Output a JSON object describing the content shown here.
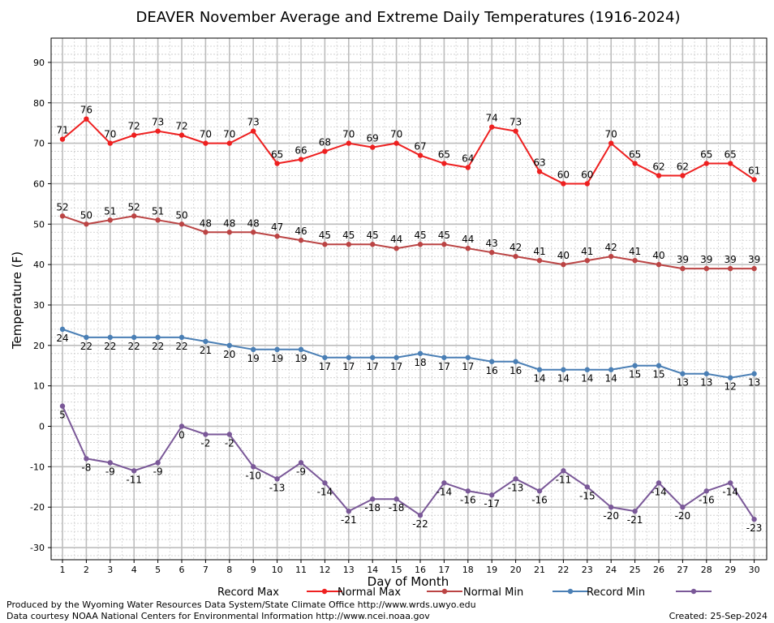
{
  "chart_data": {
    "type": "line",
    "title": "DEAVER November Average and Extreme Daily Temperatures (1916-2024)",
    "xlabel": "Day of Month",
    "ylabel": "Temperature (F)",
    "xlim": [
      1,
      30
    ],
    "ylim": [
      -33,
      96
    ],
    "yticks": [
      "-30",
      "-20",
      "-10",
      "0",
      "10",
      "20",
      "30",
      "40",
      "50",
      "60",
      "70",
      "80",
      "90"
    ],
    "x": [
      1,
      2,
      3,
      4,
      5,
      6,
      7,
      8,
      9,
      10,
      11,
      12,
      13,
      14,
      15,
      16,
      17,
      18,
      19,
      20,
      21,
      22,
      23,
      24,
      25,
      26,
      27,
      28,
      29,
      30
    ],
    "grid": true,
    "legend_position": "bottom",
    "series": [
      {
        "name": "Record Max",
        "color": "#ee2020",
        "label_pos": "above",
        "values": [
          71,
          76,
          70,
          72,
          73,
          72,
          70,
          70,
          73,
          65,
          66,
          68,
          70,
          69,
          70,
          67,
          65,
          64,
          74,
          73,
          63,
          60,
          60,
          70,
          65,
          62,
          62,
          65,
          65,
          61
        ]
      },
      {
        "name": "Normal Max",
        "color": "#bb4444",
        "label_pos": "above",
        "values": [
          52,
          50,
          51,
          52,
          51,
          50,
          48,
          48,
          48,
          47,
          46,
          45,
          45,
          45,
          44,
          45,
          45,
          44,
          43,
          42,
          41,
          40,
          41,
          42,
          41,
          40,
          39,
          39,
          39,
          39
        ]
      },
      {
        "name": "Normal Min",
        "color": "#4a7fb5",
        "label_pos": "below",
        "values": [
          24,
          22,
          22,
          22,
          22,
          22,
          21,
          20,
          19,
          19,
          19,
          17,
          17,
          17,
          17,
          18,
          17,
          17,
          16,
          16,
          14,
          14,
          14,
          14,
          15,
          15,
          13,
          13,
          12,
          13
        ]
      },
      {
        "name": "Record Min",
        "color": "#7a5898",
        "label_pos": "below",
        "values": [
          5,
          -8,
          -9,
          -11,
          -9,
          0,
          -2,
          -2,
          -10,
          -13,
          -9,
          -14,
          -21,
          -18,
          -18,
          -22,
          -14,
          -16,
          -17,
          -13,
          -16,
          -11,
          -15,
          -20,
          -21,
          -14,
          -20,
          -16,
          -14,
          -23
        ]
      }
    ]
  },
  "footer": {
    "produced_by": "Produced by the Wyoming Water Resources Data System/State Climate Office http://www.wrds.uwyo.edu",
    "data_courtesy": "Data courtesy NOAA National Centers for Environmental Information http://www.ncei.noaa.gov",
    "created": "Created: 25-Sep-2024"
  }
}
